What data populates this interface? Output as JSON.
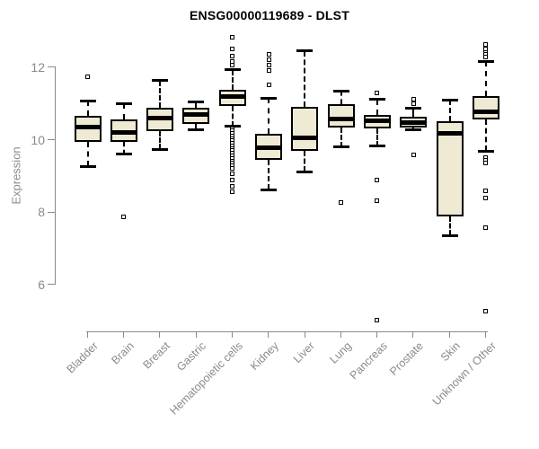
{
  "colors": {
    "box_fill": "#EFEAD3",
    "box_stroke": "#000000",
    "axis": "#8A8A8A",
    "title_color": "#000000",
    "background": "#FFFFFF"
  },
  "chart_data": {
    "type": "boxplot",
    "title": "ENSG00000119689 - DLST",
    "xlabel": "",
    "ylabel": "Expression",
    "yticks": [
      6,
      8,
      10,
      12
    ],
    "ylim": [
      4.7,
      13.0
    ],
    "grid": "off",
    "legend": "none",
    "categories": [
      "Bladder",
      "Brain",
      "Breast",
      "Gastric",
      "Hematopoietic cells",
      "Kidney",
      "Liver",
      "Lung",
      "Pancreas",
      "Prostate",
      "Skin",
      "Unknown / Other"
    ],
    "series": [
      {
        "name": "Bladder",
        "whisker_low": 9.27,
        "q1": 9.95,
        "median": 10.34,
        "q3": 10.66,
        "whisker_high": 11.08,
        "outliers": [
          11.73
        ]
      },
      {
        "name": "Brain",
        "whisker_low": 9.6,
        "q1": 9.94,
        "median": 10.21,
        "q3": 10.56,
        "whisker_high": 11.0,
        "outliers": [
          7.86
        ]
      },
      {
        "name": "Breast",
        "whisker_low": 9.74,
        "q1": 10.24,
        "median": 10.61,
        "q3": 10.88,
        "whisker_high": 11.63,
        "outliers": []
      },
      {
        "name": "Gastric",
        "whisker_low": 10.28,
        "q1": 10.43,
        "median": 10.69,
        "q3": 10.89,
        "whisker_high": 11.05,
        "outliers": []
      },
      {
        "name": "Hematopoietic cells",
        "whisker_low": 10.37,
        "q1": 10.94,
        "median": 11.2,
        "q3": 11.38,
        "whisker_high": 11.93,
        "outliers": [
          12.82,
          12.5,
          12.32,
          12.17,
          12.05,
          10.3,
          10.24,
          10.17,
          10.1,
          10.03,
          9.97,
          9.9,
          9.83,
          9.76,
          9.7,
          9.63,
          9.56,
          9.49,
          9.42,
          9.35,
          9.28,
          9.21,
          9.05,
          8.9,
          8.72,
          8.57
        ]
      },
      {
        "name": "Kidney",
        "whisker_low": 8.62,
        "q1": 9.45,
        "median": 9.78,
        "q3": 10.17,
        "whisker_high": 11.15,
        "outliers": [
          12.37,
          12.22,
          12.07,
          11.92,
          11.52
        ]
      },
      {
        "name": "Liver",
        "whisker_low": 9.12,
        "q1": 9.7,
        "median": 10.06,
        "q3": 10.9,
        "whisker_high": 12.45,
        "outliers": []
      },
      {
        "name": "Lung",
        "whisker_low": 9.8,
        "q1": 10.35,
        "median": 10.58,
        "q3": 10.98,
        "whisker_high": 11.35,
        "outliers": [
          8.28
        ]
      },
      {
        "name": "Pancreas",
        "whisker_low": 9.83,
        "q1": 10.31,
        "median": 10.52,
        "q3": 10.68,
        "whisker_high": 11.11,
        "outliers": [
          11.3,
          8.9,
          8.33,
          5.03
        ]
      },
      {
        "name": "Prostate",
        "whisker_low": 10.27,
        "q1": 10.34,
        "median": 10.47,
        "q3": 10.64,
        "whisker_high": 10.86,
        "outliers": [
          11.13,
          11.0,
          9.58
        ]
      },
      {
        "name": "Skin",
        "whisker_low": 7.36,
        "q1": 7.88,
        "median": 10.17,
        "q3": 10.51,
        "whisker_high": 11.1,
        "outliers": []
      },
      {
        "name": "Unknown / Other",
        "whisker_low": 9.69,
        "q1": 10.56,
        "median": 10.78,
        "q3": 11.21,
        "whisker_high": 12.17,
        "outliers": [
          12.62,
          12.5,
          12.42,
          12.35,
          12.28,
          9.5,
          9.43,
          9.36,
          8.6,
          8.4,
          7.58,
          5.26
        ]
      }
    ]
  }
}
